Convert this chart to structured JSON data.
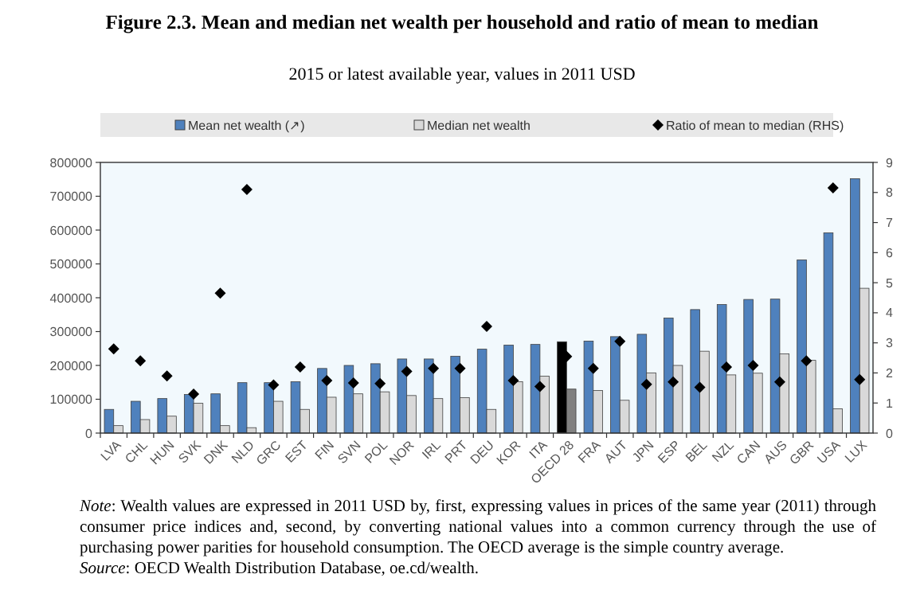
{
  "chart_data": {
    "type": "bar",
    "title": "Figure 2.3. Mean and median net wealth per household and ratio of mean to median",
    "subtitle": "2015 or latest available year, values in 2011 USD",
    "categories": [
      "LVA",
      "CHL",
      "HUN",
      "SVK",
      "DNK",
      "NLD",
      "GRC",
      "EST",
      "FIN",
      "SVN",
      "POL",
      "NOR",
      "IRL",
      "PRT",
      "DEU",
      "KOR",
      "ITA",
      "OECD 28",
      "FRA",
      "AUT",
      "JPN",
      "ESP",
      "BEL",
      "NZL",
      "CAN",
      "AUS",
      "GBR",
      "USA",
      "LUX"
    ],
    "series": [
      {
        "name": "Mean net wealth (↗)",
        "color": "#4f81bd",
        "colors": [
          "#4f81bd",
          "#4f81bd",
          "#4f81bd",
          "#4f81bd",
          "#4f81bd",
          "#4f81bd",
          "#4f81bd",
          "#4f81bd",
          "#4f81bd",
          "#4f81bd",
          "#4f81bd",
          "#4f81bd",
          "#4f81bd",
          "#4f81bd",
          "#4f81bd",
          "#4f81bd",
          "#4f81bd",
          "#000000",
          "#4f81bd",
          "#4f81bd",
          "#4f81bd",
          "#4f81bd",
          "#4f81bd",
          "#4f81bd",
          "#4f81bd",
          "#4f81bd",
          "#4f81bd",
          "#4f81bd",
          "#4f81bd"
        ],
        "values": [
          70000,
          94000,
          102000,
          114000,
          116000,
          149000,
          149000,
          152000,
          191000,
          200000,
          205000,
          219000,
          219000,
          227000,
          248000,
          260000,
          262000,
          270000,
          272000,
          285000,
          292000,
          340000,
          365000,
          380000,
          395000,
          396000,
          512000,
          592000,
          752000
        ]
      },
      {
        "name": "Median net wealth",
        "color": "#d9d9d9",
        "colors": [
          "#d9d9d9",
          "#d9d9d9",
          "#d9d9d9",
          "#d9d9d9",
          "#d9d9d9",
          "#d9d9d9",
          "#d9d9d9",
          "#d9d9d9",
          "#d9d9d9",
          "#d9d9d9",
          "#d9d9d9",
          "#d9d9d9",
          "#d9d9d9",
          "#d9d9d9",
          "#d9d9d9",
          "#d9d9d9",
          "#d9d9d9",
          "#808080",
          "#d9d9d9",
          "#d9d9d9",
          "#d9d9d9",
          "#d9d9d9",
          "#d9d9d9",
          "#d9d9d9",
          "#d9d9d9",
          "#d9d9d9",
          "#d9d9d9",
          "#d9d9d9",
          "#d9d9d9"
        ],
        "values": [
          22000,
          40000,
          50000,
          88000,
          22000,
          16000,
          94000,
          70000,
          106000,
          116000,
          122000,
          111000,
          102000,
          105000,
          70000,
          152000,
          168000,
          130000,
          126000,
          97000,
          178000,
          200000,
          242000,
          172000,
          177000,
          234000,
          215000,
          72000,
          428000
        ]
      },
      {
        "name": "Ratio of mean to median (RHS)",
        "type": "scatter",
        "axis": "y2",
        "marker": "diamond",
        "color": "#000000",
        "values": [
          2.8,
          2.4,
          1.9,
          1.3,
          4.65,
          8.1,
          1.6,
          2.2,
          1.75,
          1.67,
          1.65,
          2.05,
          2.15,
          2.15,
          3.55,
          1.75,
          1.55,
          2.55,
          2.15,
          3.05,
          1.62,
          1.7,
          1.52,
          2.2,
          2.25,
          1.7,
          2.4,
          8.15,
          1.78
        ]
      }
    ],
    "ylim": [
      0,
      800000
    ],
    "yticks": [
      0,
      100000,
      200000,
      300000,
      400000,
      500000,
      600000,
      700000,
      800000
    ],
    "y2lim": [
      0,
      9
    ],
    "y2ticks": [
      0,
      1,
      2,
      3,
      4,
      5,
      6,
      7,
      8,
      9
    ],
    "legend": "top",
    "grid": false,
    "annotations": [
      "Note: Wealth values are expressed in 2011 USD by, first, expressing values in prices of the same year (2011) through consumer price indices and, second, by converting national values into a common currency through the use of purchasing power parities for household consumption. The OECD average is the simple country average.",
      "Source: OECD Wealth Distribution Database, oe.cd/wealth."
    ]
  }
}
